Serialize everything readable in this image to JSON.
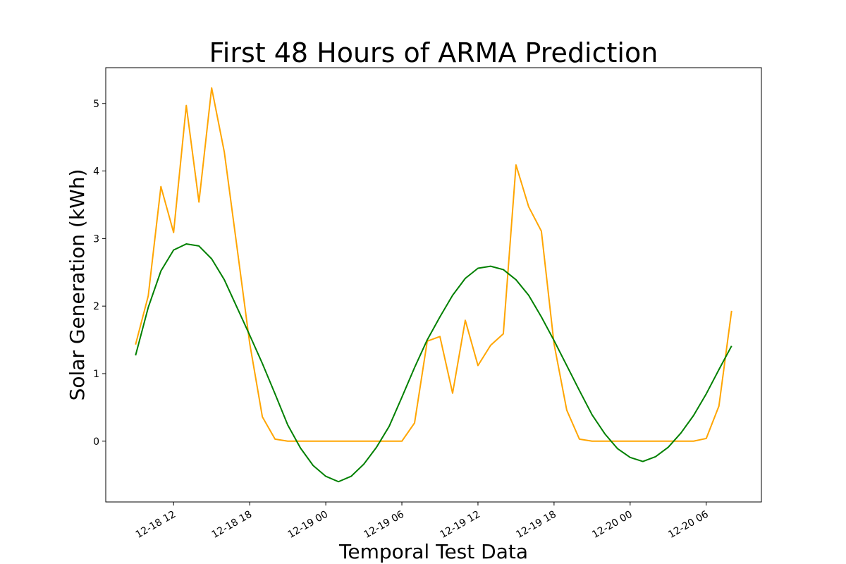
{
  "chart_data": {
    "type": "line",
    "title": "First 48 Hours of ARMA Prediction",
    "xlabel": "Temporal Test Data",
    "ylabel": "Solar Generation (kWh)",
    "x": [
      "12-18 09:00",
      "12-18 10:00",
      "12-18 11:00",
      "12-18 12:00",
      "12-18 13:00",
      "12-18 14:00",
      "12-18 15:00",
      "12-18 16:00",
      "12-18 17:00",
      "12-18 18:00",
      "12-18 19:00",
      "12-18 20:00",
      "12-18 21:00",
      "12-18 22:00",
      "12-18 23:00",
      "12-19 00:00",
      "12-19 01:00",
      "12-19 02:00",
      "12-19 03:00",
      "12-19 04:00",
      "12-19 05:00",
      "12-19 06:00",
      "12-19 07:00",
      "12-19 08:00",
      "12-19 09:00",
      "12-19 10:00",
      "12-19 11:00",
      "12-19 12:00",
      "12-19 13:00",
      "12-19 14:00",
      "12-19 15:00",
      "12-19 16:00",
      "12-19 17:00",
      "12-19 18:00",
      "12-19 19:00",
      "12-19 20:00",
      "12-19 21:00",
      "12-19 22:00",
      "12-19 23:00",
      "12-20 00:00",
      "12-20 01:00",
      "12-20 02:00",
      "12-20 03:00",
      "12-20 04:00",
      "12-20 05:00",
      "12-20 06:00",
      "12-20 07:00",
      "12-20 08:00"
    ],
    "series": [
      {
        "color": "#ffa500",
        "values": [
          1.43,
          2.15,
          3.77,
          3.09,
          4.97,
          3.54,
          5.23,
          4.28,
          2.87,
          1.45,
          0.36,
          0.03,
          0.0,
          0.0,
          0.0,
          0.0,
          0.0,
          0.0,
          0.0,
          0.0,
          0.0,
          0.0,
          0.27,
          1.48,
          1.55,
          0.71,
          1.79,
          1.12,
          1.42,
          1.59,
          4.09,
          3.47,
          3.11,
          1.44,
          0.46,
          0.03,
          0.0,
          0.0,
          0.0,
          0.0,
          0.0,
          0.0,
          0.0,
          0.0,
          0.0,
          0.04,
          0.52,
          1.93
        ]
      },
      {
        "color": "#008000",
        "values": [
          1.27,
          1.98,
          2.52,
          2.83,
          2.92,
          2.89,
          2.7,
          2.39,
          1.98,
          1.57,
          1.15,
          0.7,
          0.24,
          -0.1,
          -0.36,
          -0.52,
          -0.6,
          -0.52,
          -0.34,
          -0.09,
          0.22,
          0.65,
          1.09,
          1.5,
          1.84,
          2.16,
          2.41,
          2.56,
          2.59,
          2.54,
          2.39,
          2.16,
          1.84,
          1.49,
          1.12,
          0.75,
          0.39,
          0.11,
          -0.11,
          -0.24,
          -0.3,
          -0.23,
          -0.09,
          0.12,
          0.38,
          0.7,
          1.06,
          1.41
        ]
      }
    ],
    "x_ticks": [
      "12-18 12",
      "12-18 18",
      "12-19 00",
      "12-19 06",
      "12-19 12",
      "12-19 18",
      "12-20 00",
      "12-20 06"
    ],
    "y_ticks": [
      "0",
      "1",
      "2",
      "3",
      "4",
      "5"
    ],
    "ylim": [
      -0.9,
      5.53
    ],
    "xlim": [
      "12-18 06:39",
      "12-20 10:21"
    ],
    "grid": false,
    "legend": "none"
  }
}
